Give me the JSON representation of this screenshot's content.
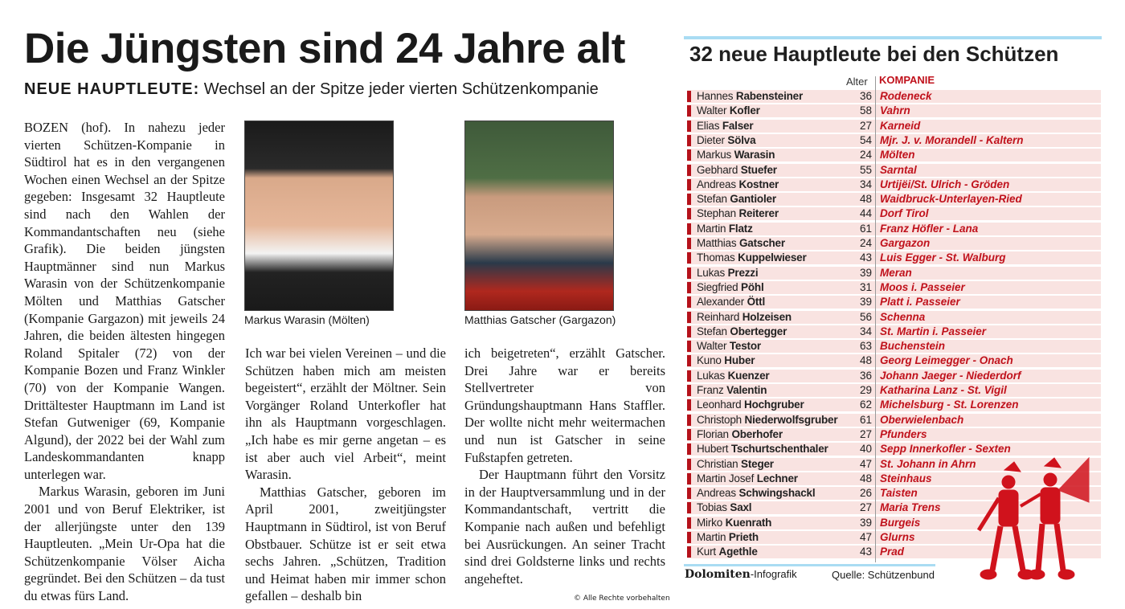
{
  "article": {
    "headline": "Die Jüngsten sind 24 Jahre alt",
    "kicker": "NEUE HAUPTLEUTE:",
    "subhead": " Wechsel an der Spitze jeder vierten Schützenkompanie",
    "col1": [
      "BOZEN (hof). In nahezu jeder vierten Schützen-Kompanie in Südtirol hat es in den vergangenen Wochen einen Wechsel an der Spitze gegeben: Insgesamt 32 Hauptleute sind nach den Wahlen der Kommandantschaften neu (siehe Grafik). Die beiden jüngsten Hauptmänner sind nun Markus Warasin von der Schützenkompanie Mölten und Matthias Gatscher (Kompanie Gargazon) mit jeweils 24 Jahren, die beiden ältesten hingegen Roland Spitaler (72) von der Kompanie Bozen und Franz Winkler (70) von der Kompanie Wangen. Drittältester Hauptmann im Land ist Stefan Gutweniger (69, Kompanie Algund), der 2022 bei der Wahl zum Landeskommandanten knapp unterlegen war.",
      "Markus Warasin, geboren im Juni 2001 und von Beruf Elektriker, ist der allerjüngste unter den 139 Hauptleuten. „Mein Ur-Opa hat die Schützenkompanie Völser Aicha gegründet. Bei den Schützen – da tust du etwas fürs Land."
    ],
    "col2": [
      "Ich war bei vielen Vereinen – und die Schützen haben mich am meisten begeistert“, erzählt der Möltner. Sein Vorgänger Roland Unterkofler hat ihn als Hauptmann vorgeschlagen. „Ich habe es mir gerne angetan – es ist aber auch viel Arbeit“, meint Warasin.",
      "Matthias Gatscher, geboren im April 2001, zweitjüngster Hauptmann in Südtirol, ist von Beruf Obstbauer. Schütze ist er seit etwa sechs Jahren. „Schützen, Tradition und Heimat haben mir immer schon gefallen – deshalb bin"
    ],
    "col3": [
      "ich beigetreten“, erzählt Gatscher. Drei Jahre war er bereits Stellvertreter von Gründungshauptmann Hans Staffler. Der wollte nicht mehr weitermachen und nun ist Gatscher in seine Fußstapfen getreten.",
      "Der Hauptmann führt den Vorsitz in der Hauptversammlung und in der Kommandantschaft, vertritt die Kompanie nach außen und befehligt bei Ausrückungen. An seiner Tracht sind drei Goldsterne links und rechts angeheftet."
    ],
    "caption1": "Markus Warasin (Mölten)",
    "caption2": "Matthias Gatscher (Gargazon)",
    "copyright": "© Alle Rechte vorbehalten"
  },
  "graphic": {
    "title": "32 neue Hauptleute bei den Schützen",
    "col_age": "Alter",
    "col_company": "KOMPANIE",
    "accent": "#c0121c",
    "rows": [
      {
        "first": "Hannes",
        "last": "Rabensteiner",
        "age": "36",
        "company": "Rodeneck"
      },
      {
        "first": "Walter",
        "last": "Kofler",
        "age": "58",
        "company": "Vahrn"
      },
      {
        "first": "Elias",
        "last": "Falser",
        "age": "27",
        "company": "Karneid"
      },
      {
        "first": "Dieter",
        "last": "Sölva",
        "age": "54",
        "company": "Mjr. J. v. Morandell - Kaltern"
      },
      {
        "first": "Markus",
        "last": "Warasin",
        "age": "24",
        "company": "Mölten"
      },
      {
        "first": "Gebhard",
        "last": "Stuefer",
        "age": "55",
        "company": "Sarntal"
      },
      {
        "first": "Andreas",
        "last": "Kostner",
        "age": "34",
        "company": "Urtijëi/St. Ulrich - Gröden"
      },
      {
        "first": "Stefan",
        "last": "Gantioler",
        "age": "48",
        "company": "Waidbruck-Unterlayen-Ried"
      },
      {
        "first": "Stephan",
        "last": "Reiterer",
        "age": "44",
        "company": "Dorf Tirol"
      },
      {
        "first": "Martin",
        "last": "Flatz",
        "age": "61",
        "company": "Franz Höfler - Lana"
      },
      {
        "first": "Matthias",
        "last": "Gatscher",
        "age": "24",
        "company": "Gargazon"
      },
      {
        "first": "Thomas",
        "last": "Kuppelwieser",
        "age": "43",
        "company": "Luis Egger - St. Walburg"
      },
      {
        "first": "Lukas",
        "last": "Prezzi",
        "age": "39",
        "company": "Meran"
      },
      {
        "first": "Siegfried",
        "last": "Pöhl",
        "age": "31",
        "company": "Moos i. Passeier"
      },
      {
        "first": "Alexander",
        "last": "Öttl",
        "age": "39",
        "company": "Platt i. Passeier"
      },
      {
        "first": "Reinhard",
        "last": "Holzeisen",
        "age": "56",
        "company": "Schenna"
      },
      {
        "first": "Stefan",
        "last": "Obertegger",
        "age": "34",
        "company": "St. Martin i. Passeier"
      },
      {
        "first": "Walter",
        "last": "Testor",
        "age": "63",
        "company": "Buchenstein"
      },
      {
        "first": "Kuno",
        "last": "Huber",
        "age": "48",
        "company": "Georg Leimegger - Onach"
      },
      {
        "first": "Lukas",
        "last": "Kuenzer",
        "age": "36",
        "company": "Johann Jaeger - Niederdorf"
      },
      {
        "first": "Franz",
        "last": "Valentin",
        "age": "29",
        "company": "Katharina Lanz - St. Vigil"
      },
      {
        "first": "Leonhard",
        "last": "Hochgruber",
        "age": "62",
        "company": "Michelsburg - St. Lorenzen"
      },
      {
        "first": "Christoph",
        "last": "Niederwolfsgruber",
        "age": "61",
        "company": "Oberwielenbach"
      },
      {
        "first": "Florian",
        "last": "Oberhofer",
        "age": "27",
        "company": "Pfunders"
      },
      {
        "first": "Hubert",
        "last": "Tschurtschenthaler",
        "age": "40",
        "company": "Sepp Innerkofler - Sexten"
      },
      {
        "first": "Christian",
        "last": "Steger",
        "age": "47",
        "company": "St. Johann in Ahrn"
      },
      {
        "first": "Martin Josef",
        "last": "Lechner",
        "age": "48",
        "company": "Steinhaus"
      },
      {
        "first": "Andreas",
        "last": "Schwingshackl",
        "age": "26",
        "company": "Taisten"
      },
      {
        "first": "Tobias",
        "last": "Saxl",
        "age": "27",
        "company": "Maria Trens"
      },
      {
        "first": "Mirko",
        "last": "Kuenrath",
        "age": "39",
        "company": "Burgeis"
      },
      {
        "first": "Martin",
        "last": "Prieth",
        "age": "47",
        "company": "Glurns"
      },
      {
        "first": "Kurt",
        "last": "Agethle",
        "age": "43",
        "company": "Prad"
      }
    ],
    "logo": "Dolomiten",
    "logo_suffix": "-Infografik",
    "source": "Quelle: Schützenbund"
  }
}
